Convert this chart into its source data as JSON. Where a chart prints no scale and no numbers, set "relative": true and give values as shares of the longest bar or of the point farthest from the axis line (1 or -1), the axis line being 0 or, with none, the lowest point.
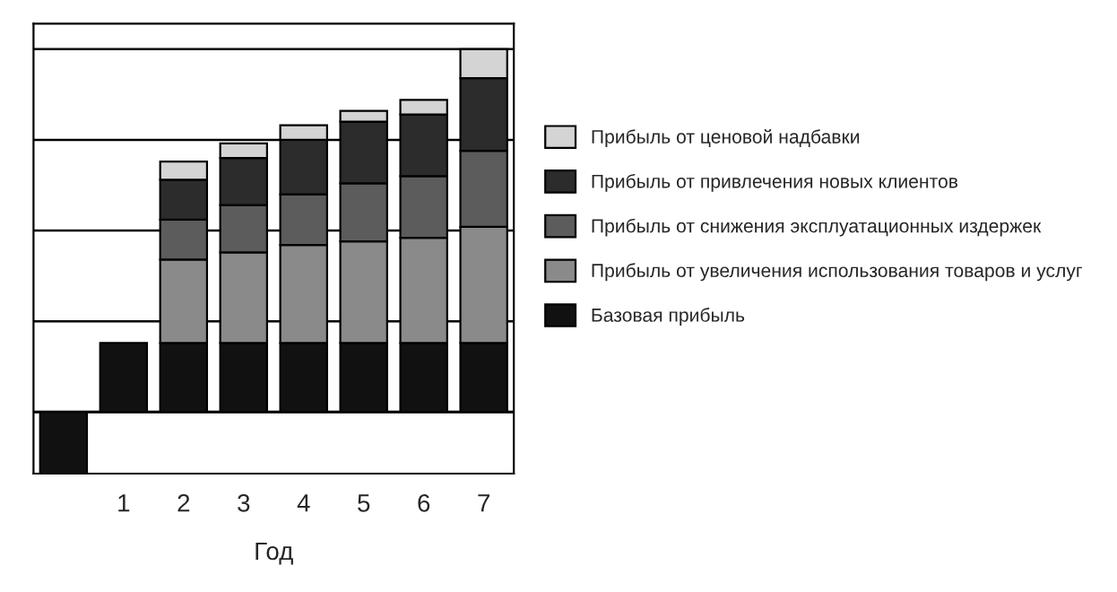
{
  "chart_data": {
    "type": "bar",
    "stacked": true,
    "relative": true,
    "xlabel": "Год",
    "categories": [
      null,
      "1",
      "2",
      "3",
      "4",
      "5",
      "6",
      "7"
    ],
    "series": [
      {
        "name": "Базовая прибыль",
        "color": "#111111",
        "values": [
          -0.17,
          0.19,
          0.19,
          0.19,
          0.19,
          0.19,
          0.19,
          0.19
        ]
      },
      {
        "name": "Прибыль от увеличения использования товаров и услуг",
        "color": "#8a8a8a",
        "values": [
          null,
          null,
          0.23,
          0.25,
          0.27,
          0.28,
          0.29,
          0.32
        ]
      },
      {
        "name": "Прибыль от снижения эксплуатационных издержек",
        "color": "#5c5c5c",
        "values": [
          null,
          null,
          0.11,
          0.13,
          0.14,
          0.16,
          0.17,
          0.21
        ]
      },
      {
        "name": "Прибыль от привлечения новых клиентов",
        "color": "#2c2c2c",
        "values": [
          null,
          null,
          0.11,
          0.13,
          0.15,
          0.17,
          0.17,
          0.2
        ]
      },
      {
        "name": "Прибыль от ценовой надбавки",
        "color": "#d4d4d4",
        "values": [
          null,
          null,
          0.05,
          0.04,
          0.04,
          0.03,
          0.04,
          0.08
        ]
      }
    ],
    "grid": "y",
    "legend": "right"
  }
}
